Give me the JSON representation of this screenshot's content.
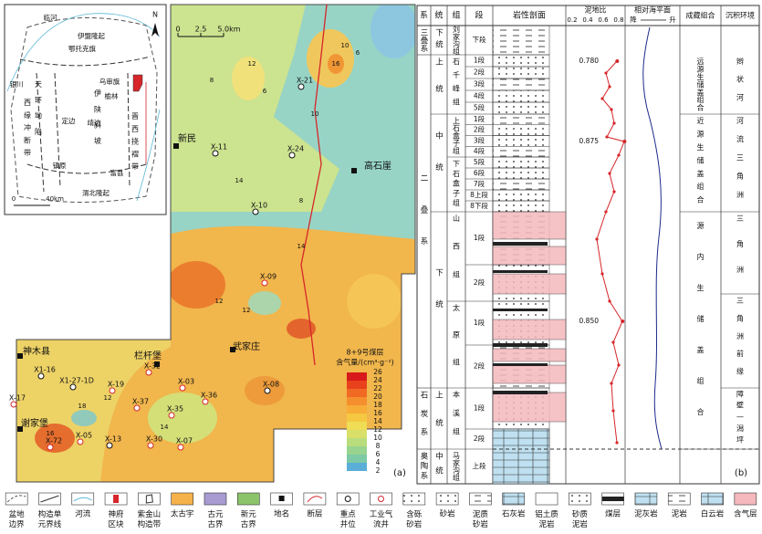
{
  "map": {
    "label": "(a)",
    "scale": [
      "0",
      "2.5",
      "5.0km"
    ],
    "places": [
      "新民",
      "高石崖",
      "武家庄",
      "栏杆堡",
      "神木县",
      "谢家堡"
    ],
    "wells": [
      "X-21",
      "X-24",
      "X-11",
      "X-10",
      "X-09",
      "X-08",
      "X-32",
      "X-03",
      "X-36",
      "X-19",
      "X-35",
      "X-37",
      "X1-16",
      "X-17",
      "X1-27-1D",
      "X-72",
      "X-05",
      "X-13",
      "X-30",
      "X-07"
    ],
    "contour_labels": [
      10,
      16,
      12,
      8,
      6,
      14,
      6,
      8,
      10,
      12,
      14,
      12,
      16,
      18,
      12,
      14
    ],
    "colorbar": {
      "title": [
        "8+9号煤层",
        "含气量/(cm³·g⁻¹)"
      ],
      "ticks": [
        26,
        24,
        22,
        20,
        18,
        16,
        14,
        12,
        10,
        8,
        6,
        4,
        2
      ]
    }
  },
  "inset": {
    "labels": [
      "临河",
      "鄂托克旗",
      "伊盟隆起",
      "银川",
      "乌审旗",
      "榆林",
      "定边",
      "靖边",
      "镇原",
      "富县",
      "天环坳陷",
      "西缘冲断带",
      "伊陕斜坡",
      "晋西挠褶带",
      "渭北隆起"
    ],
    "scale": [
      "0",
      "40km"
    ],
    "north": "N"
  },
  "column": {
    "headers": [
      "系",
      "统",
      "组",
      "段",
      "岩性剖面",
      "泥地比",
      "相对海平面",
      "成藏组合",
      "沉积环境"
    ],
    "ratio_ticks": [
      0.2,
      0.4,
      0.6,
      0.8
    ],
    "sea_level": [
      "降",
      "升"
    ],
    "systems": [
      "三叠系",
      "二叠系",
      "石炭系",
      "奥陶系"
    ],
    "series": [
      "下统",
      "上统",
      "中统",
      "下统",
      "上统",
      "中统"
    ],
    "formations": [
      "刘家沟组",
      "石千峰组",
      "上石盒子组",
      "下石盒子组",
      "山西组",
      "太原组",
      "本溪组",
      "马家沟组"
    ],
    "members": [
      "下段",
      "1段",
      "2段",
      "3段",
      "4段",
      "5段",
      "1段",
      "2段",
      "3段",
      "4段",
      "5段",
      "6段",
      "7段",
      "8上段",
      "8下段",
      "1段",
      "2段",
      "1段",
      "2段",
      "1段",
      "2段",
      "上段"
    ],
    "ratios": [
      {
        "value": 0.78,
        "label": "0.780"
      },
      {
        "value": 0.875,
        "label": "0.875"
      },
      {
        "value": 0.85,
        "label": "0.850"
      }
    ],
    "plays": [
      "远源生储盖组合",
      "近源生储盖组合",
      "源内生储盖组合"
    ],
    "environments": [
      "辫状河",
      "河流三角洲",
      "三角洲",
      "三角洲前缘",
      "障壁—潟坪"
    ],
    "label": "(b)"
  },
  "legend": [
    "盆地边界",
    "构造单元界线",
    "河流",
    "神府区块",
    "紫金山构造带",
    "太古宇",
    "古元古界",
    "新元古界",
    "地名",
    "断层",
    "重点井位",
    "工业气流井",
    "含砾砂岩",
    "砂岩",
    "泥质砂岩",
    "石灰岩",
    "铝土质泥岩",
    "砂质泥岩",
    "煤层",
    "泥灰岩",
    "泥岩",
    "白云岩",
    "含气层"
  ]
}
